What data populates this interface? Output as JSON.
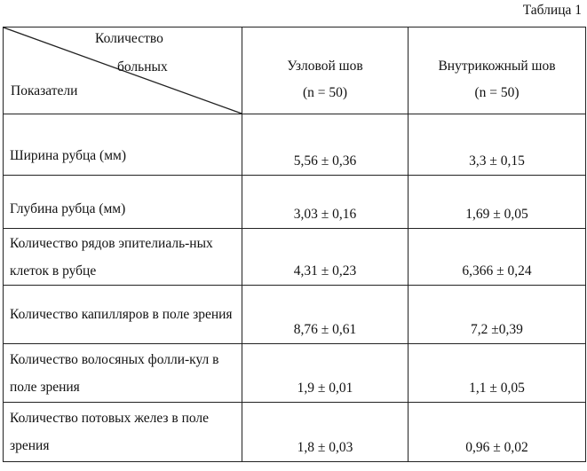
{
  "caption": "Таблица 1",
  "header": {
    "corner_top": "Количество",
    "corner_mid": "больных",
    "corner_bottom": "Показатели",
    "columns": [
      {
        "name": "Узловой шов",
        "n": "(n = 50)"
      },
      {
        "name": "Внутрикожный шов",
        "n": "(n = 50)"
      }
    ]
  },
  "rows": [
    {
      "label": "Ширина рубца (мм)",
      "v1": "5,56 ± 0,36",
      "v2": "3,3 ± 0,15"
    },
    {
      "label": "Глубина рубца (мм)",
      "v1": "3,03 ± 0,16",
      "v2": "1,69 ± 0,05"
    },
    {
      "label": "Количество рядов эпителиаль-ных клеток в рубце",
      "v1": "4,31 ± 0,23",
      "v2": "6,366 ± 0,24"
    },
    {
      "label": "Количество капилляров в поле зрения",
      "v1": "8,76 ± 0,61",
      "v2": "7,2 ±0,39"
    },
    {
      "label": "Количество волосяных фолли-кул в поле зрения",
      "v1": "1,9 ± 0,01",
      "v2": "1,1 ± 0,05"
    },
    {
      "label": "Количество потовых желез в поле зрения",
      "v1": "1,8 ± 0,03",
      "v2": "0,96 ± 0,02"
    }
  ]
}
